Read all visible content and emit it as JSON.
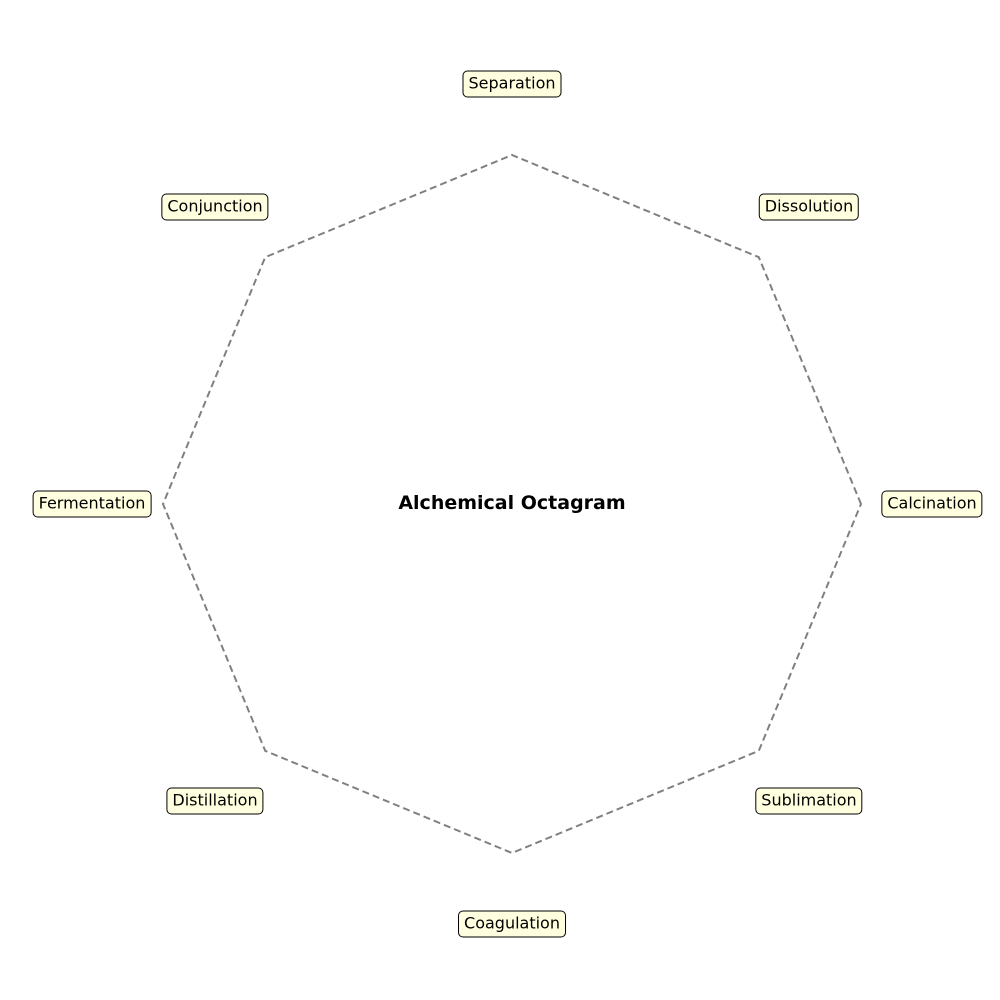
{
  "diagram": {
    "title": "Alchemical Octagram",
    "stages": [
      {
        "name": "Calcination"
      },
      {
        "name": "Dissolution"
      },
      {
        "name": "Separation"
      },
      {
        "name": "Conjunction"
      },
      {
        "name": "Fermentation"
      },
      {
        "name": "Distillation"
      },
      {
        "name": "Coagulation"
      },
      {
        "name": "Sublimation"
      }
    ],
    "colors": {
      "outline": "#808080",
      "label_fill": "#ffffe0",
      "label_border": "#000000",
      "text": "#000000"
    }
  }
}
